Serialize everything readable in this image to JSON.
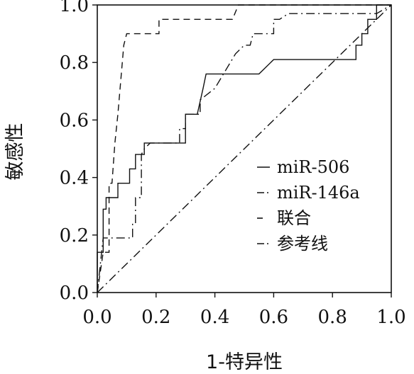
{
  "chart_data": {
    "type": "line",
    "title": "",
    "xlabel": "1-特异性",
    "ylabel": "敏感性",
    "xlim": [
      0,
      1
    ],
    "ylim": [
      0,
      1
    ],
    "x_ticks": [
      "0.0",
      "0.2",
      "0.4",
      "0.6",
      "0.8",
      "1.0"
    ],
    "y_ticks": [
      "0.0",
      "0.2",
      "0.4",
      "0.6",
      "0.8",
      "1.0"
    ],
    "grid": false,
    "legend_position": "right",
    "series": [
      {
        "name": "miR-506",
        "style": "solid",
        "points": [
          [
            0,
            0
          ],
          [
            0,
            0.14
          ],
          [
            0.02,
            0.14
          ],
          [
            0.02,
            0.29
          ],
          [
            0.03,
            0.29
          ],
          [
            0.03,
            0.33
          ],
          [
            0.07,
            0.33
          ],
          [
            0.07,
            0.38
          ],
          [
            0.11,
            0.38
          ],
          [
            0.11,
            0.43
          ],
          [
            0.13,
            0.43
          ],
          [
            0.13,
            0.48
          ],
          [
            0.16,
            0.48
          ],
          [
            0.16,
            0.52
          ],
          [
            0.3,
            0.52
          ],
          [
            0.3,
            0.62
          ],
          [
            0.34,
            0.62
          ],
          [
            0.36,
            0.71
          ],
          [
            0.37,
            0.76
          ],
          [
            0.55,
            0.76
          ],
          [
            0.6,
            0.81
          ],
          [
            0.88,
            0.81
          ],
          [
            0.88,
            0.86
          ],
          [
            0.9,
            0.86
          ],
          [
            0.9,
            0.9
          ],
          [
            0.92,
            0.9
          ],
          [
            0.92,
            0.95
          ],
          [
            0.95,
            0.95
          ],
          [
            0.95,
            1.0
          ],
          [
            1.0,
            1.0
          ]
        ]
      },
      {
        "name": "miR-146a",
        "style": "dashdot",
        "points": [
          [
            0,
            0
          ],
          [
            0.02,
            0.19
          ],
          [
            0.12,
            0.19
          ],
          [
            0.12,
            0.24
          ],
          [
            0.13,
            0.24
          ],
          [
            0.13,
            0.33
          ],
          [
            0.15,
            0.33
          ],
          [
            0.15,
            0.48
          ],
          [
            0.16,
            0.5
          ],
          [
            0.18,
            0.52
          ],
          [
            0.28,
            0.52
          ],
          [
            0.28,
            0.57
          ],
          [
            0.3,
            0.57
          ],
          [
            0.3,
            0.62
          ],
          [
            0.35,
            0.62
          ],
          [
            0.35,
            0.67
          ],
          [
            0.4,
            0.71
          ],
          [
            0.47,
            0.83
          ],
          [
            0.5,
            0.86
          ],
          [
            0.52,
            0.86
          ],
          [
            0.53,
            0.9
          ],
          [
            0.6,
            0.9
          ],
          [
            0.6,
            0.95
          ],
          [
            0.62,
            0.95
          ],
          [
            0.65,
            0.97
          ],
          [
            0.95,
            0.97
          ],
          [
            1.0,
            1.0
          ]
        ]
      },
      {
        "name": "联合",
        "style": "dashed",
        "points": [
          [
            0,
            0
          ],
          [
            0.02,
            0.14
          ],
          [
            0.04,
            0.14
          ],
          [
            0.04,
            0.38
          ],
          [
            0.05,
            0.38
          ],
          [
            0.06,
            0.52
          ],
          [
            0.07,
            0.62
          ],
          [
            0.09,
            0.86
          ],
          [
            0.1,
            0.9
          ],
          [
            0.21,
            0.9
          ],
          [
            0.21,
            0.95
          ],
          [
            0.25,
            0.95
          ],
          [
            0.46,
            0.95
          ],
          [
            0.48,
            1.0
          ],
          [
            1.0,
            1.0
          ]
        ]
      },
      {
        "name": "参考线",
        "style": "dashdot",
        "points": [
          [
            0,
            0
          ],
          [
            1,
            1
          ]
        ]
      }
    ]
  }
}
